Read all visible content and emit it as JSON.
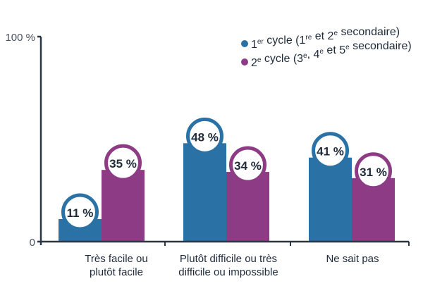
{
  "chart_data": {
    "type": "bar",
    "categories": [
      [
        "Très facile ou",
        "plutôt facile"
      ],
      [
        "Plutôt difficile ou très",
        "difficile ou impossible"
      ],
      [
        "Ne sait pas"
      ]
    ],
    "series": [
      {
        "name": "1er cycle (1re et 2e secondaire)",
        "name_parts": [
          [
            "1",
            ""
          ],
          [
            "er",
            "sup"
          ],
          [
            " cycle (1",
            ""
          ],
          [
            "re",
            "sup"
          ],
          [
            " et 2",
            ""
          ],
          [
            "e",
            "sup"
          ],
          [
            " secondaire)",
            ""
          ]
        ],
        "color": "#2a72a5",
        "values": [
          11,
          48,
          41
        ],
        "labels": [
          "11 %",
          "48 %",
          "41 %"
        ]
      },
      {
        "name": "2e cycle (3e, 4e et 5e secondaire)",
        "name_parts": [
          [
            "2",
            ""
          ],
          [
            "e",
            "sup"
          ],
          [
            " cycle (3",
            ""
          ],
          [
            "e",
            "sup"
          ],
          [
            ", 4",
            ""
          ],
          [
            "e",
            "sup"
          ],
          [
            " et 5",
            ""
          ],
          [
            "e",
            "sup"
          ],
          [
            " secondaire)",
            ""
          ]
        ],
        "color": "#8e3b85",
        "values": [
          35,
          34,
          31
        ],
        "labels": [
          "35 %",
          "34 %",
          "31 %"
        ]
      }
    ],
    "ylim": [
      0,
      100
    ],
    "yticks": [
      "0",
      "100 %"
    ],
    "grid": false,
    "legend_position": "top-right",
    "axis_color": "#2b3644"
  }
}
